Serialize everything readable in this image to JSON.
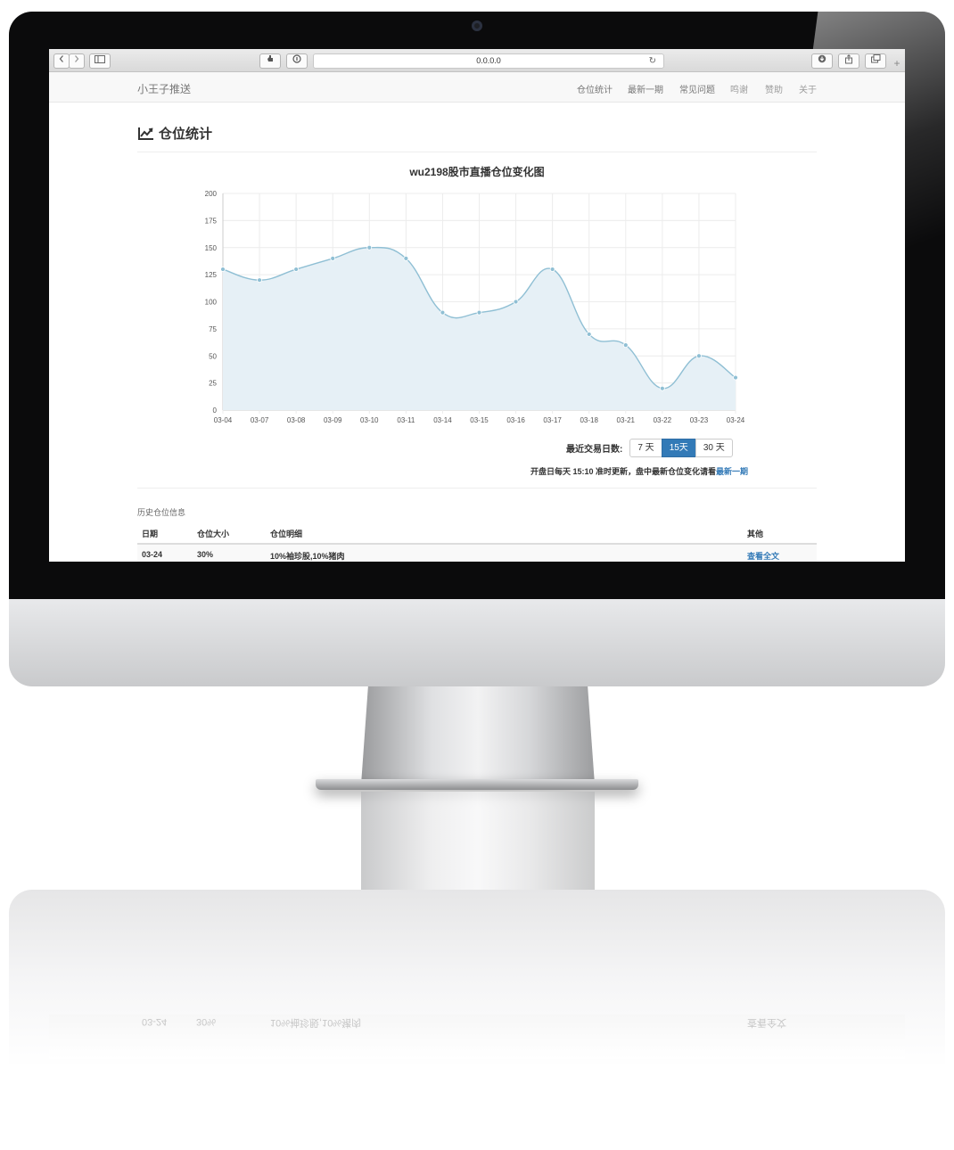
{
  "browser": {
    "url": "0.0.0.0"
  },
  "navbar": {
    "brand": "小王子推送",
    "links": [
      {
        "label": "仓位统计",
        "active": true
      },
      {
        "label": "最新一期",
        "active": true
      },
      {
        "label": "常见问题",
        "active": true
      },
      {
        "label": "鸣谢",
        "active": false
      },
      {
        "label": "赞助",
        "active": false
      },
      {
        "label": "关于",
        "active": false
      }
    ]
  },
  "page": {
    "title": "仓位统计",
    "title_icon": "line-chart-icon"
  },
  "chart_data": {
    "type": "area",
    "title": "wu2198股市直播仓位变化图",
    "categories": [
      "03-04",
      "03-07",
      "03-08",
      "03-09",
      "03-10",
      "03-11",
      "03-14",
      "03-15",
      "03-16",
      "03-17",
      "03-18",
      "03-21",
      "03-22",
      "03-23",
      "03-24"
    ],
    "values": [
      130,
      120,
      130,
      140,
      150,
      140,
      90,
      90,
      100,
      130,
      70,
      60,
      20,
      50,
      30
    ],
    "ylim": [
      0,
      200
    ],
    "yticks": [
      0,
      25,
      50,
      75,
      100,
      125,
      150,
      175,
      200
    ],
    "grid": true,
    "line_color": "#8fbfd4",
    "fill_color": "#e6f0f6"
  },
  "controls": {
    "days_label": "最近交易日数:",
    "days_options": [
      {
        "label": "7 天",
        "active": false
      },
      {
        "label": "15天",
        "active": true
      },
      {
        "label": "30 天",
        "active": false
      }
    ],
    "note_prefix": "开盘日每天 15:10 准时更新，盘中最新仓位变化请看",
    "note_link": "最新一期"
  },
  "history": {
    "title": "历史仓位信息",
    "headers": [
      "日期",
      "仓位大小",
      "仓位明细",
      "其他"
    ],
    "rows": [
      {
        "date": "03-24",
        "size": "30%",
        "detail": "10%袖珍股,10%猪肉",
        "other": "查看全文"
      }
    ]
  },
  "colors": {
    "accent": "#337ab7",
    "navbar_bg": "#f8f8f8"
  }
}
